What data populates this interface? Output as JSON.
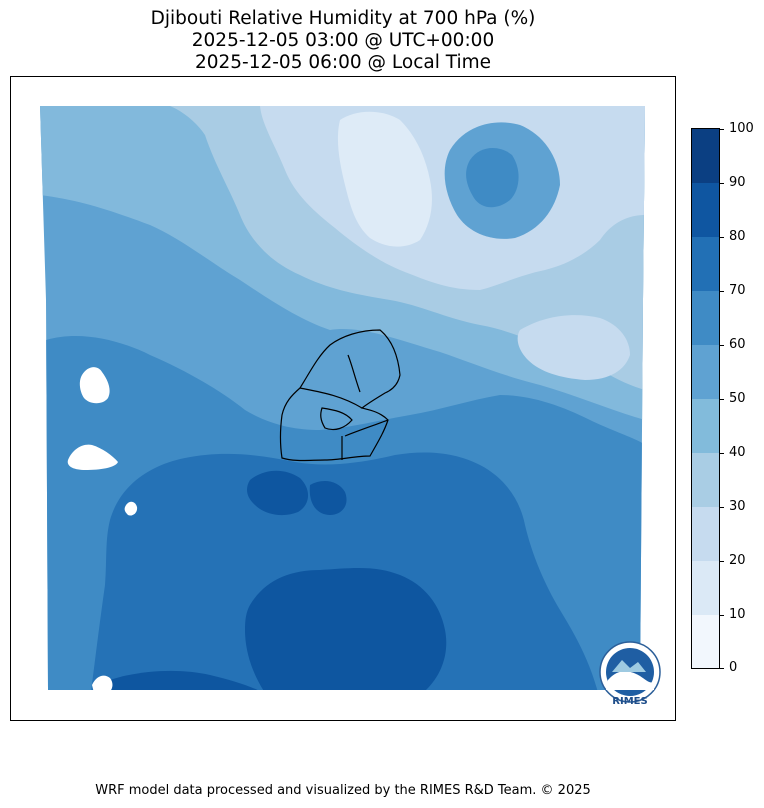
{
  "title_lines": [
    "Djibouti Relative Humidity at 700 hPa (%)",
    "2025-12-05 03:00 @ UTC+00:00",
    "2025-12-05 06:00 @ Local Time"
  ],
  "colorbar": {
    "ticks": [
      "0",
      "10",
      "20",
      "30",
      "40",
      "50",
      "60",
      "70",
      "80",
      "90",
      "100"
    ],
    "colors": [
      "#f7fbff",
      "#deebf7",
      "#c6dbef",
      "#9ecae1",
      "#6baed6",
      "#4292c6",
      "#4292c6",
      "#2171b5",
      "#2171b5",
      "#08519c",
      "#08306b"
    ]
  },
  "palette": {
    "level_10_20": "#deebf7",
    "level_20_30": "#c6dbef",
    "level_30_40": "#a9cce4",
    "level_40_50": "#82b9dc",
    "level_50_60": "#5fa2d2",
    "level_60_70": "#3f8bc5",
    "level_70_80": "#2572b6",
    "level_80_90": "#0e56a0",
    "level_90_100": "#08306b"
  },
  "logo": {
    "label": "RIMES"
  },
  "footer": "WRF model data processed and visualized by the RIMES R&D Team. © 2025"
}
